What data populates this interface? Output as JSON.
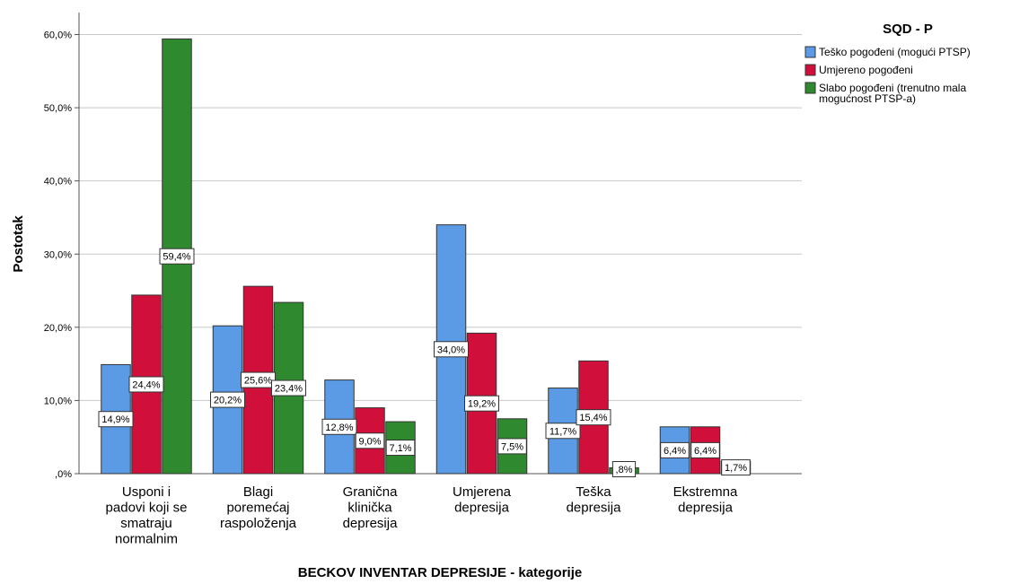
{
  "chart_data": {
    "type": "bar",
    "xlabel": "BECKOV INVENTAR DEPRESIJE - kategorije",
    "ylabel": "Postotak",
    "ylim": [
      0,
      62
    ],
    "yticks": [
      0,
      10,
      20,
      30,
      40,
      50,
      60
    ],
    "ytick_labels": [
      ",0%",
      "10,0%",
      "20,0%",
      "30,0%",
      "40,0%",
      "50,0%",
      "60,0%"
    ],
    "grid": true,
    "categories": [
      [
        "Usponi i",
        "padovi koji se",
        "smatraju",
        "normalnim"
      ],
      [
        "Blagi",
        "poremećaj",
        "raspoloženja"
      ],
      [
        "Granična",
        "klinička",
        "depresija"
      ],
      [
        "Umjerena",
        "depresija"
      ],
      [
        "Teška",
        "depresija"
      ],
      [
        "Ekstremna",
        "depresija"
      ]
    ],
    "legend": {
      "title": "SQD - P",
      "position": "right"
    },
    "series": [
      {
        "name_lines": [
          "Teško pogođeni (mogući PTSP)"
        ],
        "color": "#5b9be6",
        "values": [
          14.9,
          20.2,
          12.8,
          34.0,
          11.7,
          6.4
        ],
        "labels": [
          "14,9%",
          "20,2%",
          "12,8%",
          "34,0%",
          "11,7%",
          "6,4%"
        ]
      },
      {
        "name_lines": [
          "Umjereno pogođeni"
        ],
        "color": "#d0103a",
        "values": [
          24.4,
          25.6,
          9.0,
          19.2,
          15.4,
          6.4
        ],
        "labels": [
          "24,4%",
          "25,6%",
          "9,0%",
          "19,2%",
          "15,4%",
          "6,4%"
        ]
      },
      {
        "name_lines": [
          "Slabo pogođeni (trenutno mala",
          "mogućnost PTSP-a)"
        ],
        "color": "#2f8a2f",
        "values": [
          59.4,
          23.4,
          7.1,
          7.5,
          0.8,
          1.7
        ],
        "labels": [
          "59,4%",
          "23,4%",
          "7,1%",
          "7,5%",
          ",8%",
          "1,7%"
        ]
      }
    ]
  }
}
